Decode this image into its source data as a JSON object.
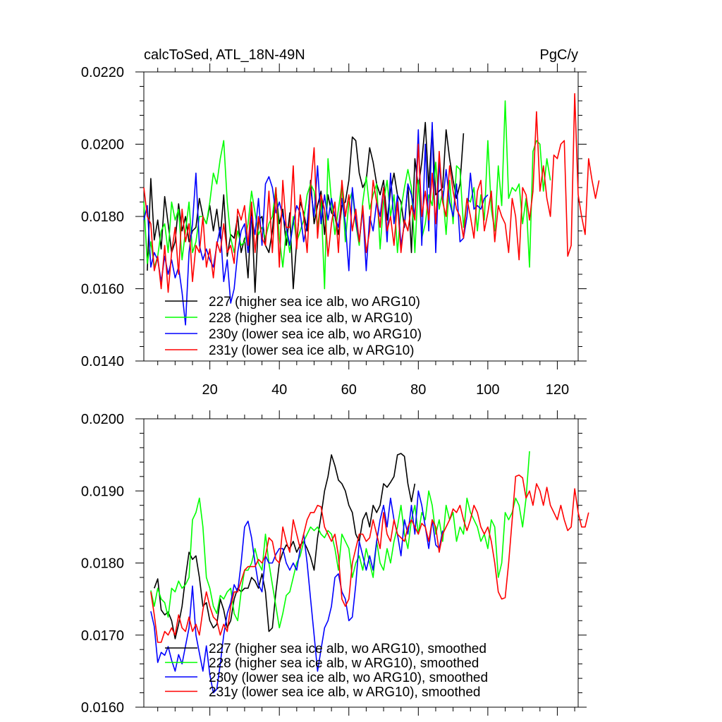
{
  "chart_data": [
    {
      "type": "line",
      "title": "calcToSed, ATL_18N-49N",
      "units": "PgC/y",
      "xlim": [
        1,
        126
      ],
      "ylim": [
        0.014,
        0.022
      ],
      "ytick_labels": [
        "0.0140",
        "0.0160",
        "0.0180",
        "0.0200",
        "0.0220"
      ],
      "xtick_labels": [
        "20",
        "40",
        "60",
        "80",
        "100",
        "120"
      ],
      "legend_position": "bottom-left",
      "series": [
        {
          "name": "227 (higher sea ice alb, wo ARG10)",
          "color": "#000000",
          "x0": 2,
          "values": [
            0.0165,
            0.01905,
            0.01735,
            0.0179,
            0.0171,
            0.01855,
            0.0178,
            0.017,
            0.0173,
            0.01835,
            0.0176,
            0.018,
            0.0173,
            0.0176,
            0.0177,
            0.0185,
            0.018,
            0.0178,
            0.0183,
            0.0176,
            0.0182,
            0.0174,
            0.0186,
            0.0169,
            0.0175,
            0.0174,
            0.018,
            0.017,
            0.0174,
            0.0163,
            0.0182,
            0.0159,
            0.0179,
            0.018,
            0.0172,
            0.017,
            0.0176,
            0.0187,
            0.0178,
            0.0182,
            0.0172,
            0.0181,
            0.016,
            0.0173,
            0.0184,
            0.0181,
            0.0176,
            0.019,
            0.0178,
            0.0183,
            0.0187,
            0.0175,
            0.0186,
            0.0181,
            0.018,
            0.0175,
            0.0183,
            0.0184,
            0.019,
            0.0202,
            0.0201,
            0.0192,
            0.0188,
            0.019,
            0.0199,
            0.0195,
            0.0189,
            0.0186,
            0.019,
            0.0179,
            0.0187,
            0.0192,
            0.0186,
            0.0184,
            0.0177,
            0.0189,
            0.017,
            0.0196,
            0.0188,
            0.0195,
            0.0206,
            0.0188,
            0.0205,
            0.0186,
            0.0187,
            0.0188,
            0.0204,
            0.0196,
            0.019,
            0.0185,
            0.0189,
            0.0203
          ]
        },
        {
          "name": "228 (higher sea ice alb, w ARG10)",
          "color": "#00ff00",
          "x0": 1,
          "values": [
            0.0184,
            0.0167,
            0.0173,
            0.0166,
            0.0169,
            0.0176,
            0.0178,
            0.017,
            0.0184,
            0.0179,
            0.0182,
            0.0168,
            0.0176,
            0.0184,
            0.017,
            0.0173,
            0.018,
            0.018,
            0.0178,
            0.0184,
            0.0192,
            0.0189,
            0.0196,
            0.0201,
            0.0184,
            0.0174,
            0.017,
            0.0176,
            0.0172,
            0.0173,
            0.0178,
            0.0187,
            0.0181,
            0.0175,
            0.0177,
            0.0174,
            0.0178,
            0.018,
            0.0188,
            0.0174,
            0.0166,
            0.0176,
            0.017,
            0.018,
            0.0173,
            0.0176,
            0.0179,
            0.0186,
            0.0189,
            0.0187,
            0.0177,
            0.0185,
            0.016,
            0.0196,
            0.0184,
            0.0175,
            0.0182,
            0.0189,
            0.0173,
            0.0184,
            0.0187,
            0.0178,
            0.0172,
            0.0184,
            0.0191,
            0.0182,
            0.0186,
            0.0189,
            0.0171,
            0.0184,
            0.019,
            0.018,
            0.0186,
            0.017,
            0.0182,
            0.0188,
            0.0193,
            0.0188,
            0.017,
            0.019,
            0.0174,
            0.0178,
            0.0186,
            0.0183,
            0.0195,
            0.0182,
            0.0187,
            0.0175,
            0.019,
            0.0178,
            0.0194,
            0.0193,
            0.0177,
            0.0185,
            0.0184,
            0.0188,
            0.0176,
            0.0186,
            0.0179,
            0.0201,
            0.0182,
            0.0176,
            0.0194,
            0.0183,
            0.0212,
            0.0185,
            0.0188,
            0.0187,
            0.0189,
            0.0178,
            0.0185,
            0.0166,
            0.0198,
            0.0201,
            0.02,
            0.0187,
            0.0196,
            0.019
          ]
        },
        {
          "name": "230y (lower sea ice alb, wo ARG10)",
          "color": "#0000ff",
          "x0": 1,
          "values": [
            0.0179,
            0.0183,
            0.0166,
            0.017,
            0.0168,
            0.0162,
            0.0169,
            0.0164,
            0.0168,
            0.0163,
            0.0166,
            0.0159,
            0.015,
            0.017,
            0.0178,
            0.0192,
            0.0172,
            0.0168,
            0.0171,
            0.0168,
            0.0166,
            0.0172,
            0.0177,
            0.0162,
            0.0168,
            0.0156,
            0.016,
            0.017,
            0.0176,
            0.0178,
            0.017,
            0.018,
            0.0175,
            0.0185,
            0.0172,
            0.0189,
            0.0191,
            0.0188,
            0.0181,
            0.0184,
            0.018,
            0.0177,
            0.0172,
            0.0178,
            0.0183,
            0.0181,
            0.0173,
            0.0178,
            0.0188,
            0.018,
            0.0194,
            0.0178,
            0.0186,
            0.0179,
            0.0185,
            0.018,
            0.0177,
            0.0185,
            0.0178,
            0.0165,
            0.0188,
            0.0179,
            0.0173,
            0.0182,
            0.0165,
            0.018,
            0.0176,
            0.0184,
            0.018,
            0.0188,
            0.0173,
            0.0192,
            0.0178,
            0.0186,
            0.0172,
            0.0178,
            0.0189,
            0.0186,
            0.018,
            0.0204,
            0.0172,
            0.02,
            0.0176,
            0.0206,
            0.017,
            0.0195,
            0.0184,
            0.0193,
            0.0184,
            0.018,
            0.0189,
            0.0173,
            0.0174,
            0.018,
            0.0192,
            0.0182,
            0.0183,
            0.0182,
            0.0185,
            0.0186
          ]
        },
        {
          "name": "231y (lower sea ice alb, w ARG10)",
          "color": "#ff0000",
          "x0": 1,
          "values": [
            0.0188,
            0.018,
            0.0178,
            0.0165,
            0.0169,
            0.016,
            0.0172,
            0.0159,
            0.017,
            0.0177,
            0.0164,
            0.0182,
            0.0173,
            0.0178,
            0.0162,
            0.0172,
            0.017,
            0.018,
            0.0166,
            0.0171,
            0.0163,
            0.0173,
            0.017,
            0.0178,
            0.017,
            0.0172,
            0.0167,
            0.0182,
            0.0179,
            0.0183,
            0.0172,
            0.0184,
            0.017,
            0.018,
            0.0174,
            0.0172,
            0.0187,
            0.017,
            0.0188,
            0.0166,
            0.019,
            0.0177,
            0.0177,
            0.0194,
            0.0171,
            0.0186,
            0.018,
            0.017,
            0.0188,
            0.0199,
            0.0174,
            0.0186,
            0.0182,
            0.0169,
            0.0178,
            0.0184,
            0.017,
            0.019,
            0.018,
            0.0186,
            0.0176,
            0.0182,
            0.0173,
            0.0183,
            0.017,
            0.0176,
            0.019,
            0.0184,
            0.0177,
            0.0188,
            0.0176,
            0.018,
            0.0172,
            0.0184,
            0.017,
            0.0179,
            0.0176,
            0.0183,
            0.0179,
            0.02,
            0.018,
            0.0187,
            0.0179,
            0.0192,
            0.0178,
            0.0198,
            0.0184,
            0.018,
            0.0194,
            0.0187,
            0.0182,
            0.018,
            0.0174,
            0.0185,
            0.018,
            0.0174,
            0.0187,
            0.019,
            0.0176,
            0.0181,
            0.0187,
            0.0173,
            0.0183,
            0.018,
            0.0178,
            0.017,
            0.0185,
            0.018,
            0.0168,
            0.0188,
            0.0186,
            0.0179,
            0.0187,
            0.0209,
            0.0187,
            0.0194,
            0.0185,
            0.018,
            0.0197,
            0.0196,
            0.02,
            0.0201,
            0.0169,
            0.0172,
            0.0214,
            0.0186,
            0.018,
            0.0175,
            0.0196,
            0.019,
            0.0185,
            0.019
          ]
        }
      ]
    },
    {
      "type": "line",
      "xlim": [
        1,
        126
      ],
      "ylim": [
        0.016,
        0.02
      ],
      "ytick_labels": [
        "0.0160",
        "0.0170",
        "0.0180",
        "0.0190",
        "0.0200"
      ],
      "xtick_labels": [],
      "legend_position": "bottom-left",
      "series": [
        {
          "name": "227 (higher sea ice alb, wo ARG10), smoothed",
          "color": "#000000",
          "x0": 4,
          "values": [
            0.01765,
            0.01778,
            0.01735,
            0.01728,
            0.01732,
            0.0172,
            0.01695,
            0.01715,
            0.0174,
            0.0178,
            0.01815,
            0.01805,
            0.0181,
            0.0178,
            0.0174,
            0.01745,
            0.0172,
            0.0171,
            0.01715,
            0.0175,
            0.01735,
            0.0171,
            0.0172,
            0.0175,
            0.01765,
            0.0176,
            0.01765,
            0.01765,
            0.0178,
            0.01775,
            0.01765,
            0.01785,
            0.0176,
            0.01705,
            0.0171,
            0.0176,
            0.018,
            0.01815,
            0.01825,
            0.0182,
            0.0183,
            0.01815,
            0.01825,
            0.0183,
            0.0182,
            0.01808,
            0.0179,
            0.01835,
            0.01865,
            0.019,
            0.0192,
            0.0195,
            0.01935,
            0.01915,
            0.0191,
            0.019,
            0.0188,
            0.0187,
            0.0184,
            0.0183,
            0.0186,
            0.0187,
            0.0185,
            0.0188,
            0.0187,
            0.0188,
            0.0191,
            0.01905,
            0.01912,
            0.0192,
            0.0195,
            0.01952,
            0.01948,
            0.0191,
            0.01885,
            0.0191
          ]
        },
        {
          "name": "228 (higher sea ice alb, w ARG10), smoothed",
          "color": "#00ff00",
          "x0": 3,
          "values": [
            0.01762,
            0.0174,
            0.01765,
            0.0175,
            0.01745,
            0.01725,
            0.01765,
            0.0176,
            0.01775,
            0.01765,
            0.0177,
            0.0178,
            0.0186,
            0.0187,
            0.0189,
            0.0185,
            0.0178,
            0.01765,
            0.0174,
            0.0173,
            0.01755,
            0.0175,
            0.0176,
            0.01765,
            0.0173,
            0.0172,
            0.0176,
            0.0179,
            0.0179,
            0.018,
            0.0182,
            0.018,
            0.0179,
            0.0184,
            0.018,
            0.0177,
            0.0174,
            0.0171,
            0.0173,
            0.01755,
            0.0176,
            0.0178,
            0.018,
            0.0181,
            0.0183,
            0.0184,
            0.0185,
            0.01845,
            0.0185,
            0.0184,
            0.01835,
            0.01845,
            0.0184,
            0.0182,
            0.0179,
            0.0184,
            0.0183,
            0.0182,
            0.0178,
            0.018,
            0.0181,
            0.0179,
            0.0182,
            0.018,
            0.0178,
            0.0183,
            0.018,
            0.0179,
            0.0182,
            0.018,
            0.0183,
            0.0185,
            0.0188,
            0.0184,
            0.0182,
            0.0186,
            0.0188,
            0.0184,
            0.0187,
            0.0186,
            0.019,
            0.0188,
            0.0184,
            0.0186,
            0.0183,
            0.0188,
            0.0186,
            0.0187,
            0.0183,
            0.0185,
            0.0184,
            0.0189,
            0.0187,
            0.0186,
            0.0185,
            0.0183,
            0.0184,
            0.0182,
            0.0186,
            0.0185,
            0.0178,
            0.018,
            0.0187,
            0.0186,
            0.0187,
            0.0189,
            0.0188,
            0.0185,
            0.0189,
            0.01955
          ]
        },
        {
          "name": "230y (lower sea ice alb, wo ARG10), smoothed",
          "color": "#0000ff",
          "x0": 3,
          "values": [
            0.01733,
            0.01712,
            0.01662,
            0.01676,
            0.01672,
            0.01684,
            0.01665,
            0.0165,
            0.01673,
            0.0166,
            0.01685,
            0.0171,
            0.01768,
            0.017,
            0.01675,
            0.0165,
            0.01685,
            0.01645,
            0.0162,
            0.01625,
            0.0166,
            0.017,
            0.0173,
            0.01745,
            0.0177,
            0.0176,
            0.018,
            0.0185,
            0.01858,
            0.01835,
            0.018,
            0.0177,
            0.0176,
            0.0181,
            0.018,
            0.018,
            0.01812,
            0.0182,
            0.0182,
            0.018,
            0.0179,
            0.018,
            0.0179,
            0.0182,
            0.0184,
            0.018,
            0.0175,
            0.017,
            0.0165,
            0.0168,
            0.0171,
            0.0172,
            0.0174,
            0.0178,
            0.01785,
            0.0176,
            0.0175,
            0.0172,
            0.01725,
            0.0177,
            0.0183,
            0.0181,
            0.0179,
            0.0181,
            0.0179,
            0.0183,
            0.0186,
            0.0188,
            0.0185,
            0.0189,
            0.0186,
            0.0184,
            0.0181,
            0.0186,
            0.0184,
            0.0188,
            0.0184,
            0.019,
            0.0188,
            0.0185,
            0.0182,
            0.0186,
            0.01825,
            0.0182,
            0.01845
          ]
        },
        {
          "name": "231y (lower sea ice alb, w ARG10), smoothed",
          "color": "#ff0000",
          "x0": 3,
          "values": [
            0.0176,
            0.01728,
            0.0169,
            0.0169,
            0.01705,
            0.017,
            0.0171,
            0.017,
            0.01728,
            0.0171,
            0.01705,
            0.01725,
            0.01705,
            0.01715,
            0.017,
            0.01735,
            0.0176,
            0.0174,
            0.01725,
            0.0172,
            0.017,
            0.01715,
            0.01705,
            0.0174,
            0.0176,
            0.0176,
            0.01775,
            0.0179,
            0.01795,
            0.01795,
            0.01795,
            0.01805,
            0.018,
            0.0181,
            0.01835,
            0.0183,
            0.01805,
            0.018,
            0.0185,
            0.0183,
            0.01815,
            0.0186,
            0.0184,
            0.0182,
            0.0184,
            0.0186,
            0.0187,
            0.0187,
            0.0188,
            0.01878,
            0.0185,
            0.0184,
            0.0183,
            0.0184,
            0.0181,
            0.0175,
            0.0174,
            0.0175,
            0.018,
            0.0182,
            0.0184,
            0.0184,
            0.0183,
            0.01835,
            0.0186,
            0.0184,
            0.0182,
            0.0187,
            0.0184,
            0.0183,
            0.0186,
            0.0184,
            0.01835,
            0.0183,
            0.0185,
            0.0186,
            0.0185,
            0.0184,
            0.01855,
            0.0185,
            0.0183,
            0.0186,
            0.0185,
            0.01815,
            0.0184,
            0.0185,
            0.0186,
            0.01875,
            0.0187,
            0.0188,
            0.0186,
            0.01845,
            0.0186,
            0.0188,
            0.0187,
            0.0185,
            0.0184,
            0.0185,
            0.0183,
            0.018,
            0.0176,
            0.0175,
            0.01752,
            0.018,
            0.0186,
            0.0192,
            0.01922,
            0.01918,
            0.0189,
            0.019,
            0.0188,
            0.0191,
            0.019,
            0.0188,
            0.01905,
            0.0188,
            0.0187,
            0.0186,
            0.0188,
            0.0186,
            0.01845,
            0.0185,
            0.01903,
            0.0187,
            0.0185,
            0.0185,
            0.0187
          ]
        }
      ]
    }
  ]
}
